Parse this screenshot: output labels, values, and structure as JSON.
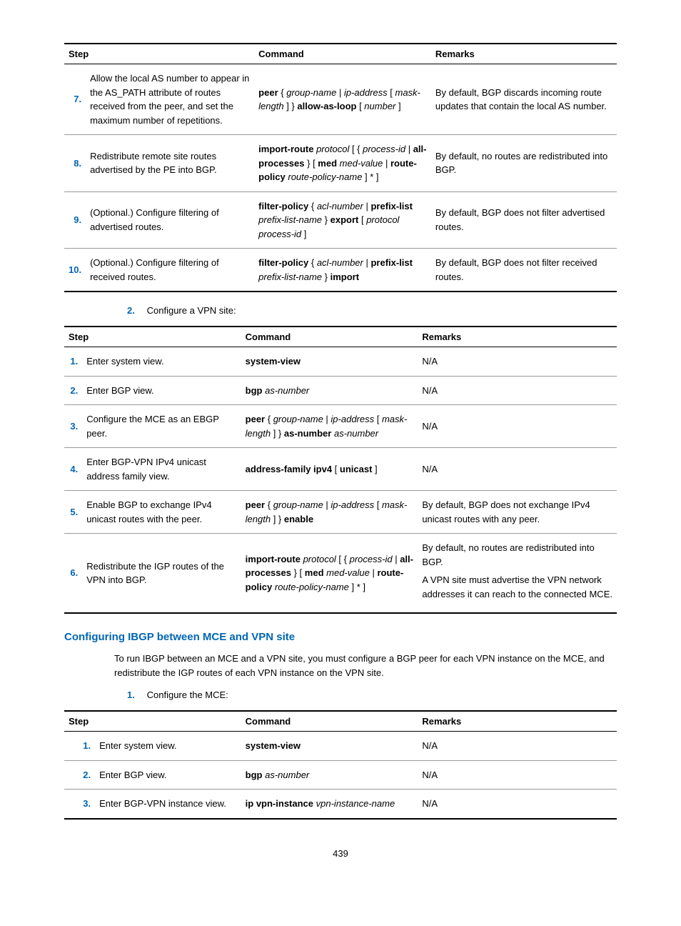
{
  "accent_color": "#0066b3",
  "table1": {
    "headers": {
      "step": "Step",
      "command": "Command",
      "remarks": "Remarks"
    },
    "rows": [
      {
        "num": "7.",
        "desc": "Allow the local AS number to appear in the AS_PATH attribute of routes received from the peer, and set the maximum number of repetitions.",
        "cmd_parts": [
          {
            "t": "peer",
            "b": true
          },
          {
            "t": " { "
          },
          {
            "t": "group-name",
            "i": true
          },
          {
            "t": " | "
          },
          {
            "t": "ip-address",
            "i": true
          },
          {
            "t": " [ "
          },
          {
            "t": "mask-length",
            "i": true
          },
          {
            "t": " ] } "
          },
          {
            "t": "allow-as-loop",
            "b": true
          },
          {
            "t": " [ "
          },
          {
            "t": "number",
            "i": true
          },
          {
            "t": " ]"
          }
        ],
        "remarks": "By default, BGP discards incoming route updates that contain the local AS number."
      },
      {
        "num": "8.",
        "desc": "Redistribute remote site routes advertised by the PE into BGP.",
        "cmd_parts": [
          {
            "t": "import-route",
            "b": true
          },
          {
            "t": " "
          },
          {
            "t": "protocol",
            "i": true
          },
          {
            "t": " [ { "
          },
          {
            "t": "process-id",
            "i": true
          },
          {
            "t": " | "
          },
          {
            "t": "all-processes",
            "b": true
          },
          {
            "t": " } [ "
          },
          {
            "t": "med",
            "b": true
          },
          {
            "t": " "
          },
          {
            "t": "med-value",
            "i": true
          },
          {
            "t": " | "
          },
          {
            "t": "route-policy",
            "b": true
          },
          {
            "t": " "
          },
          {
            "t": "route-policy-name",
            "i": true
          },
          {
            "t": " ] * ]"
          }
        ],
        "remarks": "By default, no routes are redistributed into BGP."
      },
      {
        "num": "9.",
        "desc": "(Optional.) Configure filtering of advertised routes.",
        "cmd_parts": [
          {
            "t": "filter-policy",
            "b": true
          },
          {
            "t": " { "
          },
          {
            "t": "acl-number",
            "i": true
          },
          {
            "t": " | "
          },
          {
            "t": "prefix-list",
            "b": true
          },
          {
            "t": " "
          },
          {
            "t": "prefix-list-name",
            "i": true
          },
          {
            "t": " } "
          },
          {
            "t": "export",
            "b": true
          },
          {
            "t": " [ "
          },
          {
            "t": "protocol process-id",
            "i": true
          },
          {
            "t": " ]"
          }
        ],
        "remarks": "By default, BGP does not filter advertised routes."
      },
      {
        "num": "10.",
        "desc": "(Optional.) Configure filtering of received routes.",
        "cmd_parts": [
          {
            "t": "filter-policy",
            "b": true
          },
          {
            "t": " { "
          },
          {
            "t": "acl-number",
            "i": true
          },
          {
            "t": " | "
          },
          {
            "t": "prefix-list",
            "b": true
          },
          {
            "t": " "
          },
          {
            "t": "prefix-list-name",
            "i": true
          },
          {
            "t": " } "
          },
          {
            "t": "import",
            "b": true
          }
        ],
        "remarks": "By default, BGP does not filter received routes."
      }
    ]
  },
  "list1": {
    "num": "2.",
    "text": "Configure a VPN site:"
  },
  "table2": {
    "headers": {
      "step": "Step",
      "command": "Command",
      "remarks": "Remarks"
    },
    "rows": [
      {
        "num": "1.",
        "desc": "Enter system view.",
        "cmd_parts": [
          {
            "t": "system-view",
            "b": true
          }
        ],
        "remarks": "N/A"
      },
      {
        "num": "2.",
        "desc": "Enter BGP view.",
        "cmd_parts": [
          {
            "t": "bgp",
            "b": true
          },
          {
            "t": " "
          },
          {
            "t": "as-number",
            "i": true
          }
        ],
        "remarks": "N/A"
      },
      {
        "num": "3.",
        "desc": "Configure the MCE as an EBGP peer.",
        "cmd_parts": [
          {
            "t": "peer",
            "b": true
          },
          {
            "t": " { "
          },
          {
            "t": "group-name",
            "i": true
          },
          {
            "t": " | "
          },
          {
            "t": "ip-address",
            "i": true
          },
          {
            "t": " [ "
          },
          {
            "t": "mask-length",
            "i": true
          },
          {
            "t": " ] } "
          },
          {
            "t": "as-number",
            "b": true
          },
          {
            "t": " "
          },
          {
            "t": "as-number",
            "i": true
          }
        ],
        "remarks": "N/A"
      },
      {
        "num": "4.",
        "desc": "Enter BGP-VPN IPv4 unicast address family view.",
        "cmd_parts": [
          {
            "t": "address-family ipv4",
            "b": true
          },
          {
            "t": " [ "
          },
          {
            "t": "unicast",
            "b": true
          },
          {
            "t": " ]"
          }
        ],
        "remarks": "N/A"
      },
      {
        "num": "5.",
        "desc": "Enable BGP to exchange IPv4 unicast routes with the peer.",
        "cmd_parts": [
          {
            "t": "peer",
            "b": true
          },
          {
            "t": " { "
          },
          {
            "t": "group-name",
            "i": true
          },
          {
            "t": " | "
          },
          {
            "t": "ip-address",
            "i": true
          },
          {
            "t": " [ "
          },
          {
            "t": "mask-length",
            "i": true
          },
          {
            "t": " ] } "
          },
          {
            "t": "enable",
            "b": true
          }
        ],
        "remarks": "By default, BGP does not exchange IPv4 unicast routes with any peer."
      },
      {
        "num": "6.",
        "desc": "Redistribute the IGP routes of the VPN into BGP.",
        "cmd_parts": [
          {
            "t": "import-route",
            "b": true
          },
          {
            "t": " "
          },
          {
            "t": "protocol",
            "i": true
          },
          {
            "t": " [ { "
          },
          {
            "t": "process-id",
            "i": true
          },
          {
            "t": " | "
          },
          {
            "t": "all-processes",
            "b": true
          },
          {
            "t": " } [ "
          },
          {
            "t": "med",
            "b": true
          },
          {
            "t": " "
          },
          {
            "t": "med-value",
            "i": true
          },
          {
            "t": " | "
          },
          {
            "t": "route-policy",
            "b": true
          },
          {
            "t": " "
          },
          {
            "t": "route-policy-name",
            "i": true
          },
          {
            "t": " ] * ]"
          }
        ],
        "remarks_parts": [
          "By default, no routes are redistributed into BGP.",
          "A VPN site must advertise the VPN network addresses it can reach to the connected MCE."
        ]
      }
    ]
  },
  "heading": "Configuring IBGP between MCE and VPN site",
  "para1": "To run IBGP between an MCE and a VPN site, you must configure a BGP peer for each VPN instance on the MCE, and redistribute the IGP routes of each VPN instance on the VPN site.",
  "list2": {
    "num": "1.",
    "text": "Configure the MCE:"
  },
  "table3": {
    "headers": {
      "step": "Step",
      "command": "Command",
      "remarks": "Remarks"
    },
    "rows": [
      {
        "num": "1.",
        "desc": "Enter system view.",
        "cmd_parts": [
          {
            "t": "system-view",
            "b": true
          }
        ],
        "remarks": "N/A"
      },
      {
        "num": "2.",
        "desc": "Enter BGP view.",
        "cmd_parts": [
          {
            "t": "bgp",
            "b": true
          },
          {
            "t": " "
          },
          {
            "t": "as-number",
            "i": true
          }
        ],
        "remarks": "N/A"
      },
      {
        "num": "3.",
        "desc": "Enter BGP-VPN instance view.",
        "cmd_parts": [
          {
            "t": "ip vpn-instance",
            "b": true
          },
          {
            "t": " "
          },
          {
            "t": "vpn-instance-name",
            "i": true
          }
        ],
        "remarks": "N/A"
      }
    ]
  },
  "page_number": "439"
}
